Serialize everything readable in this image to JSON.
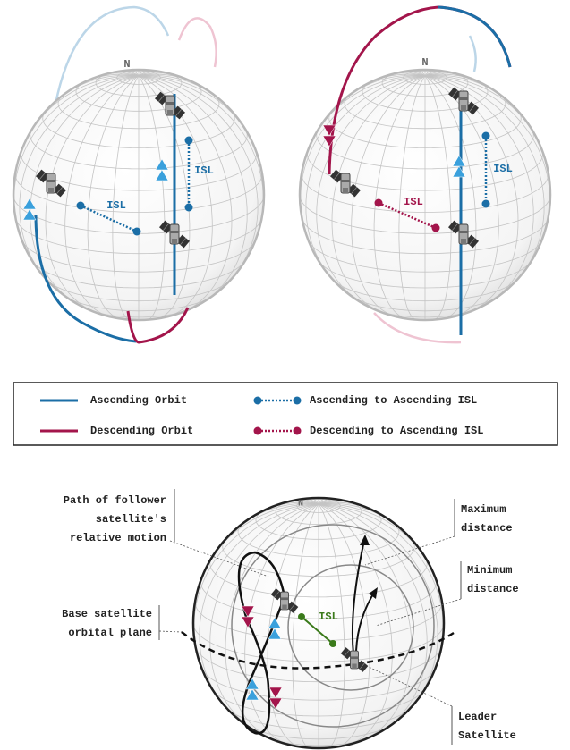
{
  "globes": [
    {
      "north": "N",
      "isl_labels": [
        "ISL",
        "ISL"
      ]
    },
    {
      "north": "N",
      "isl_labels": [
        "ISL",
        "ISL"
      ]
    }
  ],
  "legend": {
    "items": [
      {
        "label": "Ascending Orbit"
      },
      {
        "label": "Ascending to Ascending ISL"
      },
      {
        "label": "Descending Orbit"
      },
      {
        "label": "Descending to Ascending ISL"
      }
    ]
  },
  "bottom": {
    "north": "N",
    "isl_label": "ISL",
    "annotations": [
      {
        "lines": [
          "Path of follower",
          "satellite's",
          "relative motion"
        ]
      },
      {
        "lines": [
          "Base satellite",
          "orbital plane"
        ]
      },
      {
        "lines": [
          "Maximum",
          "distance"
        ]
      },
      {
        "lines": [
          "Minimum",
          "distance"
        ]
      },
      {
        "lines": [
          "Leader",
          "Satellite"
        ]
      }
    ]
  }
}
